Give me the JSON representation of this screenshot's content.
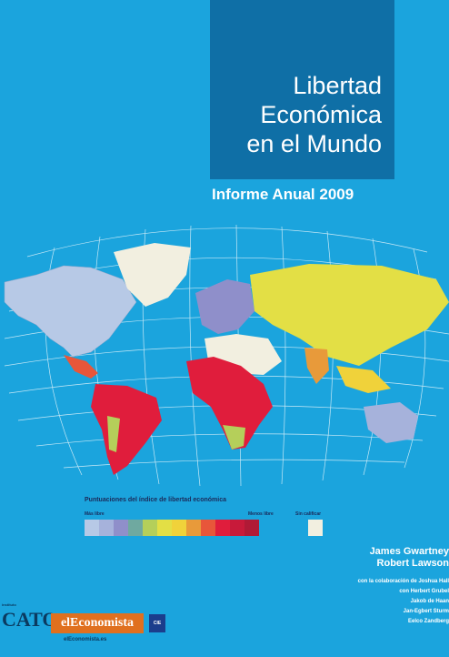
{
  "title": {
    "line1": "Libertad",
    "line2": "Económica",
    "line3": "en el Mundo"
  },
  "subtitle": "Informe Anual 2009",
  "legend": {
    "title": "Puntuaciones del índice de libertad económica",
    "more_free": "Más libre",
    "less_free": "Menos libre",
    "no_data": "Sin calificar",
    "colors": [
      "#b7c9e6",
      "#a6b2db",
      "#8f8fca",
      "#6fa9a0",
      "#b5cf5a",
      "#e3df45",
      "#f0d23a",
      "#e89a3a",
      "#e8563a",
      "#e01d3c",
      "#c81a3a",
      "#b01a36"
    ],
    "no_data_color": "#f2efe0"
  },
  "authors": {
    "main": [
      "James Gwartney",
      "Robert Lawson"
    ],
    "collab": "con la colaboración de Joshua Hall",
    "others": [
      "con Herbert Grubel",
      "Jakob de Haan",
      "Jan-Egbert Sturm",
      "Eelco Zandberg"
    ]
  },
  "logos": {
    "cato": "CATO",
    "cato_small": "instituto",
    "economista": "elEconomista",
    "economista_url": "elEconomista.es",
    "cie": "CIE"
  },
  "map_colors": {
    "north_america": "#b7c9e6",
    "greenland": "#f2efe0",
    "latin_america": "#e01d3c",
    "south_america_green": "#b5cf5a",
    "europe": "#8f8fca",
    "russia_asia": "#e3df45",
    "africa": "#e01d3c",
    "mena": "#f2efe0",
    "australia": "#a6b2db",
    "india": "#e89a3a"
  }
}
